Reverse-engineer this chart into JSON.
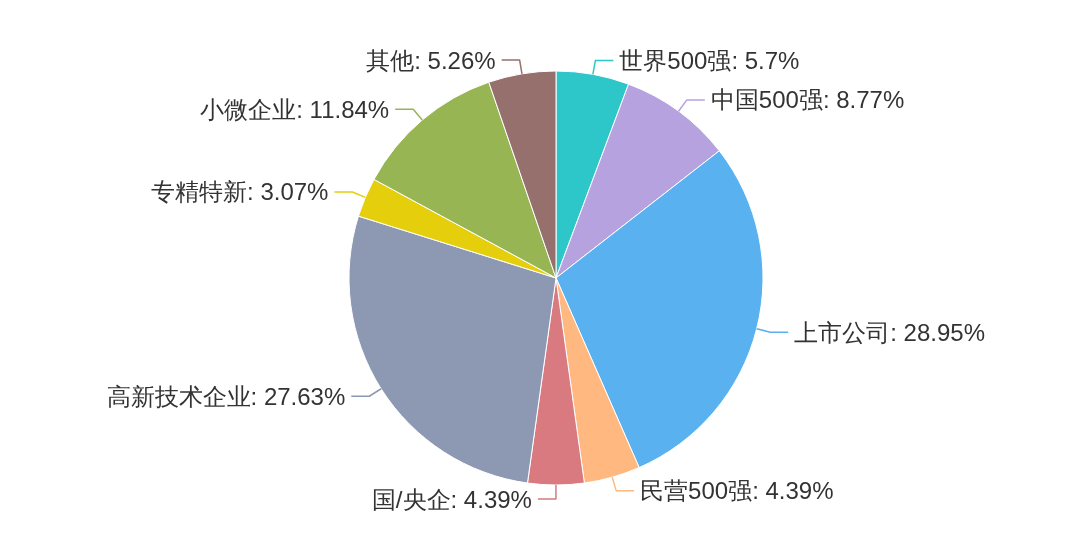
{
  "chart_data": {
    "type": "pie",
    "categories": [
      "世界500强",
      "中国500强",
      "上市公司",
      "民营500强",
      "国/央企",
      "高新技术企业",
      "专精特新",
      "小微企业",
      "其他"
    ],
    "values": [
      5.7,
      8.77,
      28.95,
      4.39,
      4.39,
      27.63,
      3.07,
      11.84,
      5.26
    ],
    "colors": [
      "#2ec7c9",
      "#b6a2de",
      "#5ab1ef",
      "#ffb980",
      "#d87a80",
      "#8d98b3",
      "#e5cf0d",
      "#97b552",
      "#95706d"
    ],
    "data_labels": true,
    "value_labels": [
      "5.7%",
      "8.77%",
      "28.95%",
      "4.39%",
      "4.39%",
      "27.63%",
      "3.07%",
      "11.84%",
      "5.26%"
    ]
  }
}
